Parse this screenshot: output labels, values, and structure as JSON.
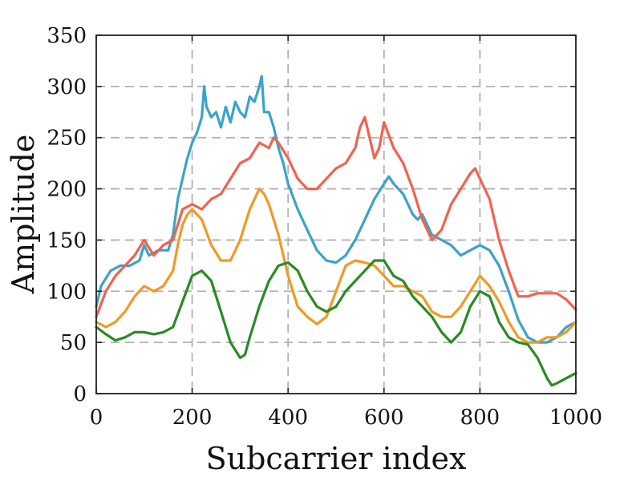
{
  "chart_data": {
    "type": "line",
    "title": "",
    "xlabel": "Subcarrier index",
    "ylabel": "Amplitude",
    "xlim": [
      0,
      1000
    ],
    "ylim": [
      0,
      350
    ],
    "xticks": [
      "0",
      "200",
      "400",
      "600",
      "800",
      "1000"
    ],
    "yticks": [
      "0",
      "50",
      "100",
      "150",
      "200",
      "250",
      "300",
      "350"
    ],
    "grid": true,
    "legend": "none",
    "series": [
      {
        "color": "#3aa3cc",
        "x": [
          0,
          10,
          30,
          50,
          70,
          90,
          100,
          110,
          130,
          150,
          160,
          170,
          180,
          190,
          200,
          210,
          220,
          225,
          230,
          240,
          250,
          260,
          270,
          280,
          290,
          300,
          310,
          320,
          330,
          340,
          345,
          350,
          360,
          370,
          380,
          390,
          400,
          420,
          440,
          460,
          480,
          500,
          520,
          540,
          560,
          580,
          600,
          610,
          620,
          640,
          660,
          670,
          680,
          690,
          700,
          720,
          740,
          760,
          780,
          800,
          820,
          840,
          860,
          880,
          900,
          920,
          940,
          960,
          980,
          1000
        ],
        "y": [
          85,
          105,
          120,
          125,
          125,
          130,
          145,
          135,
          140,
          140,
          155,
          190,
          210,
          230,
          245,
          255,
          270,
          300,
          280,
          270,
          275,
          260,
          280,
          265,
          285,
          275,
          270,
          290,
          285,
          300,
          310,
          275,
          275,
          260,
          240,
          225,
          205,
          180,
          160,
          140,
          130,
          128,
          135,
          150,
          170,
          190,
          205,
          212,
          205,
          195,
          175,
          170,
          175,
          165,
          155,
          150,
          145,
          135,
          140,
          145,
          140,
          125,
          100,
          72,
          55,
          50,
          50,
          55,
          65,
          70
        ]
      },
      {
        "color": "#f2624f",
        "x": [
          0,
          20,
          40,
          60,
          80,
          100,
          120,
          140,
          160,
          170,
          180,
          200,
          220,
          240,
          260,
          280,
          300,
          320,
          340,
          360,
          370,
          380,
          400,
          420,
          440,
          460,
          480,
          500,
          520,
          540,
          550,
          560,
          580,
          590,
          600,
          620,
          640,
          660,
          680,
          700,
          720,
          740,
          760,
          780,
          790,
          800,
          820,
          840,
          860,
          880,
          900,
          920,
          940,
          960,
          980,
          1000
        ],
        "y": [
          75,
          100,
          115,
          125,
          135,
          150,
          135,
          145,
          150,
          165,
          180,
          185,
          180,
          190,
          195,
          210,
          225,
          230,
          245,
          240,
          250,
          245,
          230,
          210,
          200,
          200,
          210,
          220,
          225,
          240,
          260,
          270,
          230,
          240,
          265,
          240,
          225,
          200,
          170,
          150,
          160,
          185,
          200,
          215,
          220,
          210,
          190,
          150,
          120,
          95,
          95,
          98,
          98,
          98,
          92,
          82
        ]
      },
      {
        "color": "#f09a24",
        "x": [
          0,
          20,
          40,
          60,
          80,
          100,
          120,
          140,
          160,
          170,
          180,
          190,
          200,
          220,
          240,
          260,
          280,
          300,
          320,
          340,
          350,
          360,
          380,
          400,
          420,
          440,
          460,
          480,
          500,
          520,
          540,
          560,
          580,
          600,
          620,
          640,
          660,
          680,
          700,
          720,
          740,
          760,
          780,
          800,
          820,
          840,
          860,
          880,
          900,
          920,
          940,
          960,
          980,
          1000
        ],
        "y": [
          70,
          65,
          70,
          80,
          95,
          105,
          100,
          105,
          120,
          145,
          165,
          175,
          180,
          170,
          145,
          130,
          130,
          150,
          180,
          200,
          195,
          185,
          155,
          115,
          85,
          75,
          68,
          75,
          100,
          125,
          130,
          128,
          125,
          115,
          105,
          105,
          100,
          95,
          80,
          75,
          75,
          85,
          100,
          115,
          105,
          90,
          70,
          55,
          50,
          50,
          55,
          55,
          60,
          70
        ]
      },
      {
        "color": "#2a8a24",
        "x": [
          0,
          20,
          40,
          60,
          80,
          100,
          120,
          140,
          160,
          180,
          200,
          220,
          240,
          260,
          280,
          300,
          310,
          320,
          340,
          360,
          380,
          400,
          420,
          440,
          460,
          480,
          500,
          520,
          540,
          560,
          580,
          600,
          620,
          640,
          660,
          680,
          700,
          720,
          740,
          760,
          780,
          800,
          820,
          840,
          860,
          880,
          900,
          920,
          940,
          950,
          960,
          980,
          1000
        ],
        "y": [
          65,
          58,
          52,
          55,
          60,
          60,
          58,
          60,
          65,
          90,
          115,
          120,
          110,
          80,
          50,
          35,
          38,
          55,
          85,
          110,
          125,
          128,
          120,
          100,
          85,
          80,
          85,
          100,
          110,
          120,
          130,
          130,
          115,
          110,
          95,
          85,
          75,
          60,
          50,
          60,
          85,
          100,
          95,
          70,
          55,
          50,
          48,
          35,
          15,
          8,
          10,
          15,
          20
        ]
      }
    ]
  }
}
